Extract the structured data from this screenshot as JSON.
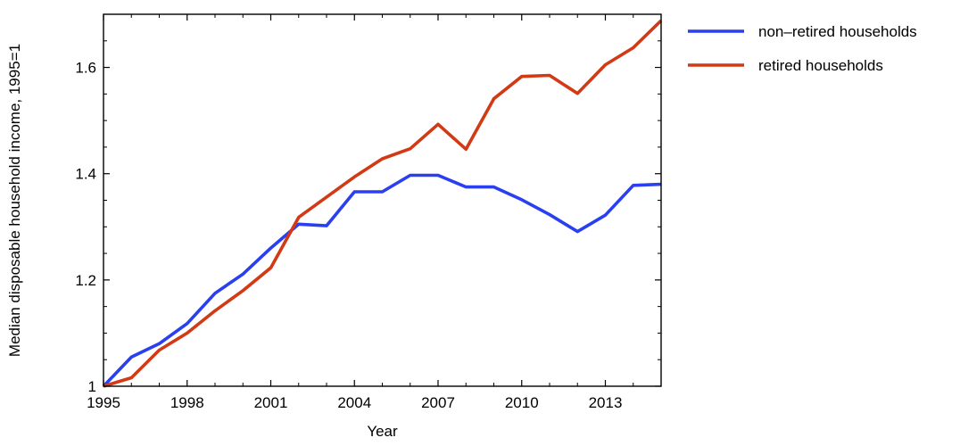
{
  "chart_data": {
    "type": "line",
    "title": "",
    "xlabel": "Year",
    "ylabel": "Median disposable household income, 1995=1",
    "xlim": [
      1995,
      2015
    ],
    "ylim": [
      1.0,
      1.7
    ],
    "x_ticks": [
      1995,
      1998,
      2001,
      2004,
      2007,
      2010,
      2013
    ],
    "x_tick_labels": [
      "1995",
      "1998",
      "2001",
      "2004",
      "2007",
      "2010",
      "2013"
    ],
    "y_ticks": [
      1.0,
      1.2,
      1.4,
      1.6
    ],
    "y_tick_labels": [
      "1",
      "1.2",
      "1.4",
      "1.6"
    ],
    "grid": false,
    "legend_position": "outside-right-top",
    "x": [
      1995,
      1996,
      1997,
      1998,
      1999,
      2000,
      2001,
      2002,
      2003,
      2004,
      2005,
      2006,
      2007,
      2008,
      2009,
      2010,
      2011,
      2012,
      2013,
      2014,
      2015
    ],
    "series": [
      {
        "name": "non–retired households",
        "color": "#2a3ff0",
        "values": [
          1.0,
          1.055,
          1.08,
          1.118,
          1.175,
          1.211,
          1.26,
          1.305,
          1.302,
          1.366,
          1.366,
          1.397,
          1.397,
          1.375,
          1.375,
          1.351,
          1.323,
          1.291,
          1.322,
          1.378,
          1.38
        ]
      },
      {
        "name": "retired households",
        "color": "#d13a14",
        "values": [
          1.0,
          1.016,
          1.068,
          1.1,
          1.142,
          1.18,
          1.223,
          1.318,
          1.356,
          1.394,
          1.428,
          1.447,
          1.493,
          1.446,
          1.541,
          1.583,
          1.585,
          1.551,
          1.605,
          1.637,
          1.688
        ]
      }
    ]
  }
}
